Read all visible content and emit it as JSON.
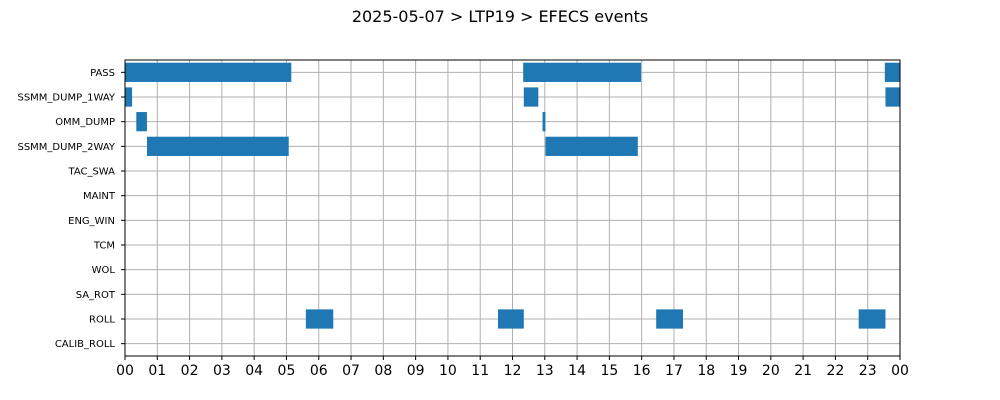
{
  "chart_data": {
    "type": "bar",
    "orientation": "horizontal-timeline",
    "title": "2025-05-07 > LTP19 > EFECS events",
    "xlabel": "",
    "ylabel": "",
    "x_range_hours": [
      0,
      24
    ],
    "x_tick_labels": [
      "00",
      "01",
      "02",
      "03",
      "04",
      "05",
      "06",
      "07",
      "08",
      "09",
      "10",
      "11",
      "12",
      "13",
      "14",
      "15",
      "16",
      "17",
      "18",
      "19",
      "20",
      "21",
      "22",
      "23",
      "00"
    ],
    "grid": true,
    "bar_color": "#1f77b4",
    "categories": [
      "PASS",
      "SSMM_DUMP_1WAY",
      "OMM_DUMP",
      "SSMM_DUMP_2WAY",
      "TAC_SWA",
      "MAINT",
      "ENG_WIN",
      "TCM",
      "WOL",
      "SA_ROT",
      "ROLL",
      "CALIB_ROLL"
    ],
    "events": [
      {
        "category": "PASS",
        "start": 0.0,
        "end": 5.15
      },
      {
        "category": "PASS",
        "start": 12.33,
        "end": 15.98
      },
      {
        "category": "PASS",
        "start": 23.53,
        "end": 24.0
      },
      {
        "category": "SSMM_DUMP_1WAY",
        "start": 0.0,
        "end": 0.22
      },
      {
        "category": "SSMM_DUMP_1WAY",
        "start": 12.35,
        "end": 12.8
      },
      {
        "category": "SSMM_DUMP_1WAY",
        "start": 23.55,
        "end": 24.0
      },
      {
        "category": "OMM_DUMP",
        "start": 0.35,
        "end": 0.68
      },
      {
        "category": "OMM_DUMP",
        "start": 12.93,
        "end": 13.02
      },
      {
        "category": "SSMM_DUMP_2WAY",
        "start": 0.68,
        "end": 5.07
      },
      {
        "category": "SSMM_DUMP_2WAY",
        "start": 13.02,
        "end": 15.88
      },
      {
        "category": "ROLL",
        "start": 5.6,
        "end": 6.45
      },
      {
        "category": "ROLL",
        "start": 11.55,
        "end": 12.35
      },
      {
        "category": "ROLL",
        "start": 16.45,
        "end": 17.28
      },
      {
        "category": "ROLL",
        "start": 22.72,
        "end": 23.55
      }
    ]
  }
}
